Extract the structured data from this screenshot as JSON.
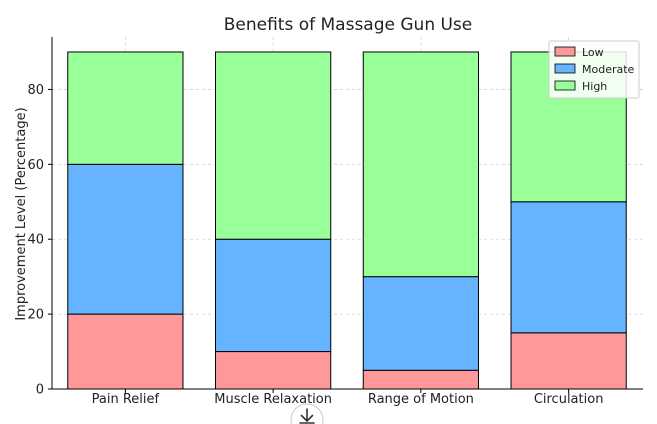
{
  "chart_data": {
    "type": "bar",
    "stacked": true,
    "title": "Benefits of Massage Gun Use",
    "xlabel": "",
    "ylabel": "Improvement Level (Percentage)",
    "categories": [
      "Pain Relief",
      "Muscle Relaxation",
      "Range of Motion",
      "Circulation"
    ],
    "series": [
      {
        "name": "Low",
        "color": "#ff9999",
        "values": [
          20,
          10,
          5,
          15
        ]
      },
      {
        "name": "Moderate",
        "color": "#66b3ff",
        "values": [
          40,
          30,
          25,
          35
        ]
      },
      {
        "name": "High",
        "color": "#99ff99",
        "values": [
          30,
          50,
          60,
          40
        ]
      }
    ],
    "ylim": [
      0,
      94
    ],
    "yticks": [
      0,
      20,
      40,
      60,
      80
    ],
    "grid": true,
    "legend_position": "top-right"
  },
  "overlay": {
    "download_icon": "download-icon"
  }
}
